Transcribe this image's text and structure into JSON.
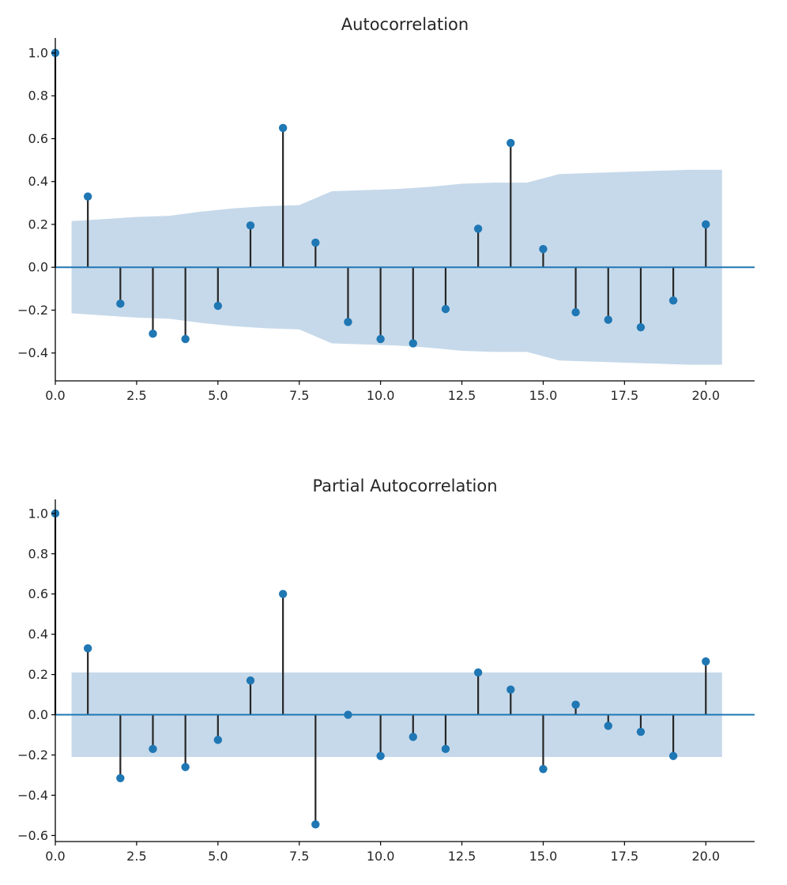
{
  "colors": {
    "marker": "#1f77b4",
    "stem": "#262626",
    "confidence_band": "#c6d9ea",
    "baseline": "#1f77b4"
  },
  "chart_data": [
    {
      "type": "stem",
      "title": "Autocorrelation",
      "xlabel": "",
      "ylabel": "",
      "xlim": [
        0,
        21.5
      ],
      "ylim": [
        -0.53,
        1.07
      ],
      "x_ticks": [
        0.0,
        2.5,
        5.0,
        7.5,
        10.0,
        12.5,
        15.0,
        17.5,
        20.0
      ],
      "x_tick_labels": [
        "0.0",
        "2.5",
        "5.0",
        "7.5",
        "10.0",
        "12.5",
        "15.0",
        "17.5",
        "20.0"
      ],
      "y_ticks": [
        1.0,
        0.8,
        0.6,
        0.4,
        0.2,
        0.0,
        -0.2,
        -0.4
      ],
      "y_tick_labels": [
        "1.0",
        "0.8",
        "0.6",
        "0.4",
        "0.2",
        "0.0",
        "−0.2",
        "−0.4"
      ],
      "lags": [
        0,
        1,
        2,
        3,
        4,
        5,
        6,
        7,
        8,
        9,
        10,
        11,
        12,
        13,
        14,
        15,
        16,
        17,
        18,
        19,
        20
      ],
      "values": [
        1.0,
        0.33,
        -0.17,
        -0.31,
        -0.335,
        -0.18,
        0.195,
        0.65,
        0.115,
        -0.255,
        -0.335,
        -0.355,
        -0.195,
        0.18,
        0.58,
        0.085,
        -0.21,
        -0.245,
        -0.28,
        -0.155,
        0.2
      ],
      "confidence_band": {
        "x": [
          0.5,
          1.5,
          2.5,
          3.5,
          4.5,
          5.5,
          6.5,
          7.5,
          8.5,
          9.5,
          10.5,
          11.5,
          12.5,
          13.5,
          14.5,
          15.5,
          16.5,
          17.5,
          18.5,
          19.5,
          20.5
        ],
        "upper": [
          0.215,
          0.225,
          0.235,
          0.24,
          0.26,
          0.275,
          0.285,
          0.29,
          0.355,
          0.36,
          0.365,
          0.375,
          0.39,
          0.395,
          0.395,
          0.435,
          0.44,
          0.445,
          0.45,
          0.455,
          0.455
        ],
        "lower": [
          -0.215,
          -0.225,
          -0.235,
          -0.24,
          -0.26,
          -0.275,
          -0.285,
          -0.29,
          -0.355,
          -0.36,
          -0.365,
          -0.375,
          -0.39,
          -0.395,
          -0.395,
          -0.435,
          -0.44,
          -0.445,
          -0.45,
          -0.455,
          -0.455
        ]
      }
    },
    {
      "type": "stem",
      "title": "Partial Autocorrelation",
      "xlabel": "",
      "ylabel": "",
      "xlim": [
        0,
        21.5
      ],
      "ylim": [
        -0.63,
        1.07
      ],
      "x_ticks": [
        0.0,
        2.5,
        5.0,
        7.5,
        10.0,
        12.5,
        15.0,
        17.5,
        20.0
      ],
      "x_tick_labels": [
        "0.0",
        "2.5",
        "5.0",
        "7.5",
        "10.0",
        "12.5",
        "15.0",
        "17.5",
        "20.0"
      ],
      "y_ticks": [
        1.0,
        0.8,
        0.6,
        0.4,
        0.2,
        0.0,
        -0.2,
        -0.4,
        -0.6
      ],
      "y_tick_labels": [
        "1.0",
        "0.8",
        "0.6",
        "0.4",
        "0.2",
        "0.0",
        "−0.2",
        "−0.4",
        "−0.6"
      ],
      "lags": [
        0,
        1,
        2,
        3,
        4,
        5,
        6,
        7,
        8,
        9,
        10,
        11,
        12,
        13,
        14,
        15,
        16,
        17,
        18,
        19,
        20
      ],
      "values": [
        1.0,
        0.33,
        -0.315,
        -0.17,
        -0.26,
        -0.125,
        0.17,
        0.6,
        -0.545,
        0.0,
        -0.205,
        -0.11,
        -0.17,
        0.21,
        0.125,
        -0.27,
        0.05,
        -0.055,
        -0.085,
        -0.205,
        0.265
      ],
      "confidence_band": {
        "x": [
          0.5,
          20.5
        ],
        "upper": [
          0.21,
          0.21
        ],
        "lower": [
          -0.21,
          -0.21
        ]
      }
    }
  ]
}
